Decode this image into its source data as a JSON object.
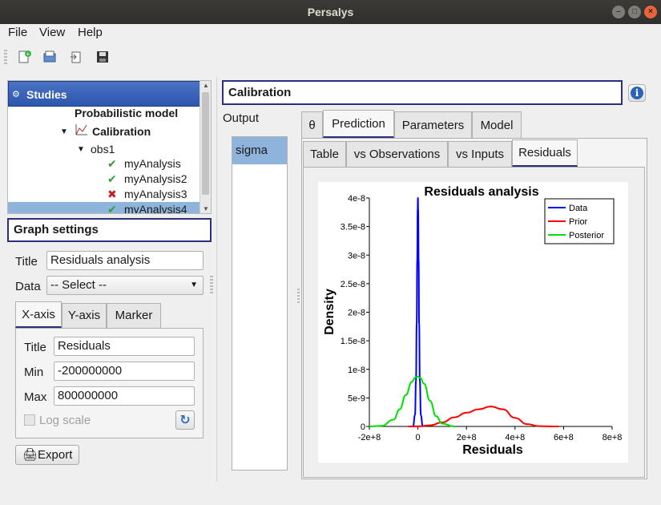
{
  "window": {
    "title": "Persalys"
  },
  "menu": {
    "file": "File",
    "view": "View",
    "help": "Help"
  },
  "toolbar": {
    "icons": [
      "new-study-icon",
      "open-study-icon",
      "import-icon",
      "save-icon"
    ]
  },
  "tree": {
    "header": "Studies",
    "items": [
      {
        "label": "Probabilistic model"
      },
      {
        "label": "Calibration"
      },
      {
        "label": "obs1"
      },
      {
        "label": "myAnalysis",
        "status": "ok"
      },
      {
        "label": "myAnalysis2",
        "status": "ok"
      },
      {
        "label": "myAnalysis3",
        "status": "failed"
      },
      {
        "label": "myAnalysis4",
        "status": "ok"
      }
    ]
  },
  "graph_settings": {
    "title": "Graph settings",
    "title_label": "Title",
    "title_value": "Residuals analysis",
    "data_label": "Data",
    "data_select": "-- Select --",
    "tabs": [
      "X-axis",
      "Y-axis",
      "Marker"
    ],
    "xaxis": {
      "title_label": "Title",
      "title_value": "Residuals",
      "min_label": "Min",
      "min_value": "-200000000",
      "max_label": "Max",
      "max_value": "800000000",
      "logscale_label": "Log scale"
    },
    "export_label": "Export"
  },
  "main": {
    "header": "Calibration",
    "output_label": "Output",
    "output_items": [
      "sigma"
    ],
    "tabs": [
      "θ",
      "Prediction",
      "Parameters",
      "Model"
    ],
    "subtabs": [
      "Table",
      "vs Observations",
      "vs Inputs",
      "Residuals"
    ]
  },
  "colors": {
    "data": "#0000ff",
    "prior": "#ff0000",
    "posterior": "#00e000",
    "accent": "#2b2f7c"
  },
  "chart_data": {
    "type": "line",
    "title": "Residuals analysis",
    "xlabel": "Residuals",
    "ylabel": "Density",
    "xlim": [
      -200000000,
      800000000
    ],
    "ylim": [
      0,
      4e-08
    ],
    "xticks": [
      "-2e+8",
      "0",
      "2e+8",
      "4e+8",
      "6e+8",
      "8e+8"
    ],
    "yticks": [
      "0",
      "5e-9",
      "1e-8",
      "1.5e-8",
      "2e-8",
      "2.5e-8",
      "3e-8",
      "3.5e-8",
      "4e-8"
    ],
    "legend_position": "top-right",
    "series": [
      {
        "name": "Data",
        "color": "#0000ff",
        "x": [
          -20000000,
          -12000000,
          -8000000,
          -5000000,
          -3000000,
          -1000000,
          0,
          1000000,
          3000000,
          5000000,
          8000000,
          12000000,
          20000000
        ],
        "y": [
          0,
          2e-09,
          8e-09,
          1.8e-08,
          2.9e-08,
          3.8e-08,
          4e-08,
          3.8e-08,
          2.9e-08,
          1.8e-08,
          8e-09,
          2e-09,
          0
        ]
      },
      {
        "name": "Prior",
        "color": "#ff0000",
        "x": [
          -40000000,
          0,
          50000000,
          100000000,
          150000000,
          200000000,
          250000000,
          300000000,
          350000000,
          400000000,
          450000000,
          500000000,
          580000000
        ],
        "y": [
          0,
          2e-11,
          2e-10,
          7e-10,
          1.6e-09,
          2.4e-09,
          3e-09,
          3.5e-09,
          3e-09,
          1.5e-09,
          4e-10,
          5e-11,
          0
        ]
      },
      {
        "name": "Posterior",
        "color": "#00e000",
        "x": [
          -200000000,
          -150000000,
          -100000000,
          -75000000,
          -50000000,
          -25000000,
          -10000000,
          0,
          10000000,
          25000000,
          50000000,
          75000000,
          100000000,
          150000000
        ],
        "y": [
          0,
          1e-10,
          1.2e-09,
          3e-09,
          5.5e-09,
          7.8e-09,
          8.6e-09,
          8.7e-09,
          8.5e-09,
          7.5e-09,
          4.5e-09,
          1.8e-09,
          5e-10,
          0
        ]
      }
    ]
  }
}
